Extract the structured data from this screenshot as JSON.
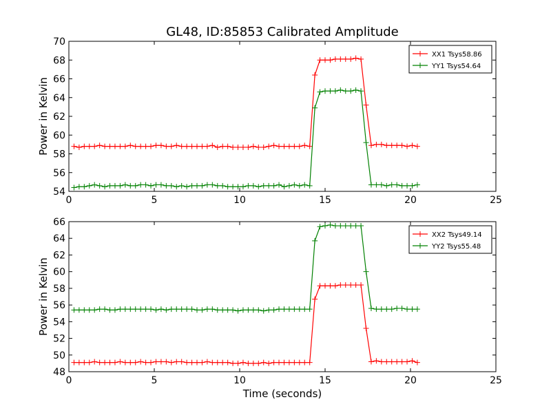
{
  "chart_data": [
    {
      "type": "line",
      "title": "GL48, ID:85853 Calibrated Amplitude",
      "xlabel": "",
      "ylabel": "Power in Kelvin",
      "xlim": [
        0,
        25
      ],
      "ylim": [
        54,
        70
      ],
      "xticks": [
        "0",
        "5",
        "10",
        "15",
        "20",
        "25"
      ],
      "yticks": [
        "54",
        "56",
        "58",
        "60",
        "62",
        "64",
        "66",
        "68",
        "70"
      ],
      "legend_position": "top-right",
      "series": [
        {
          "name": "XX1 Tsys58.86",
          "color": "#ff0000",
          "x": [
            0.3,
            0.6,
            0.9,
            1.2,
            1.5,
            1.8,
            2.1,
            2.4,
            2.7,
            3.0,
            3.3,
            3.6,
            3.9,
            4.2,
            4.5,
            4.8,
            5.1,
            5.4,
            5.7,
            6.0,
            6.3,
            6.6,
            6.9,
            7.2,
            7.5,
            7.8,
            8.1,
            8.4,
            8.7,
            9.0,
            9.3,
            9.6,
            9.9,
            10.2,
            10.5,
            10.8,
            11.1,
            11.4,
            11.7,
            12.0,
            12.3,
            12.6,
            12.9,
            13.2,
            13.5,
            13.8,
            14.1,
            14.4,
            14.7,
            15.0,
            15.3,
            15.6,
            15.9,
            16.2,
            16.5,
            16.8,
            17.1,
            17.4,
            17.7,
            18.0,
            18.3,
            18.6,
            18.9,
            19.2,
            19.5,
            19.8,
            20.1,
            20.4
          ],
          "y": [
            58.8,
            58.7,
            58.8,
            58.8,
            58.8,
            58.9,
            58.8,
            58.8,
            58.8,
            58.8,
            58.8,
            58.9,
            58.8,
            58.8,
            58.8,
            58.8,
            58.9,
            58.9,
            58.8,
            58.8,
            58.9,
            58.8,
            58.8,
            58.8,
            58.8,
            58.8,
            58.8,
            58.9,
            58.7,
            58.8,
            58.8,
            58.7,
            58.7,
            58.7,
            58.7,
            58.8,
            58.7,
            58.7,
            58.8,
            58.9,
            58.8,
            58.8,
            58.8,
            58.8,
            58.8,
            58.9,
            58.8,
            66.4,
            68.0,
            68.0,
            68.0,
            68.1,
            68.1,
            68.1,
            68.1,
            68.2,
            68.1,
            63.2,
            58.9,
            59.0,
            59.0,
            58.9,
            58.9,
            58.9,
            58.9,
            58.8,
            58.9,
            58.8
          ]
        },
        {
          "name": "YY1 Tsys54.64",
          "color": "#008000",
          "x": [
            0.3,
            0.6,
            0.9,
            1.2,
            1.5,
            1.8,
            2.1,
            2.4,
            2.7,
            3.0,
            3.3,
            3.6,
            3.9,
            4.2,
            4.5,
            4.8,
            5.1,
            5.4,
            5.7,
            6.0,
            6.3,
            6.6,
            6.9,
            7.2,
            7.5,
            7.8,
            8.1,
            8.4,
            8.7,
            9.0,
            9.3,
            9.6,
            9.9,
            10.2,
            10.5,
            10.8,
            11.1,
            11.4,
            11.7,
            12.0,
            12.3,
            12.6,
            12.9,
            13.2,
            13.5,
            13.8,
            14.1,
            14.4,
            14.7,
            15.0,
            15.3,
            15.6,
            15.9,
            16.2,
            16.5,
            16.8,
            17.1,
            17.4,
            17.7,
            18.0,
            18.3,
            18.6,
            18.9,
            19.2,
            19.5,
            19.8,
            20.1,
            20.4
          ],
          "y": [
            54.4,
            54.5,
            54.5,
            54.6,
            54.7,
            54.6,
            54.5,
            54.6,
            54.6,
            54.6,
            54.7,
            54.6,
            54.6,
            54.7,
            54.7,
            54.6,
            54.7,
            54.7,
            54.6,
            54.6,
            54.5,
            54.6,
            54.5,
            54.6,
            54.6,
            54.6,
            54.7,
            54.7,
            54.6,
            54.6,
            54.5,
            54.5,
            54.5,
            54.5,
            54.6,
            54.6,
            54.5,
            54.6,
            54.6,
            54.6,
            54.7,
            54.5,
            54.6,
            54.7,
            54.6,
            54.7,
            54.6,
            62.9,
            64.6,
            64.7,
            64.7,
            64.7,
            64.8,
            64.7,
            64.7,
            64.8,
            64.7,
            59.2,
            54.7,
            54.7,
            54.7,
            54.6,
            54.7,
            54.7,
            54.6,
            54.6,
            54.6,
            54.7
          ]
        }
      ]
    },
    {
      "type": "line",
      "title": "",
      "xlabel": "Time (seconds)",
      "ylabel": "Power in Kelvin",
      "xlim": [
        0,
        25
      ],
      "ylim": [
        48,
        66
      ],
      "xticks": [
        "0",
        "5",
        "10",
        "15",
        "20",
        "25"
      ],
      "yticks": [
        "48",
        "50",
        "52",
        "54",
        "56",
        "58",
        "60",
        "62",
        "64",
        "66"
      ],
      "legend_position": "top-right",
      "series": [
        {
          "name": "XX2 Tsys49.14",
          "color": "#ff0000",
          "x": [
            0.3,
            0.6,
            0.9,
            1.2,
            1.5,
            1.8,
            2.1,
            2.4,
            2.7,
            3.0,
            3.3,
            3.6,
            3.9,
            4.2,
            4.5,
            4.8,
            5.1,
            5.4,
            5.7,
            6.0,
            6.3,
            6.6,
            6.9,
            7.2,
            7.5,
            7.8,
            8.1,
            8.4,
            8.7,
            9.0,
            9.3,
            9.6,
            9.9,
            10.2,
            10.5,
            10.8,
            11.1,
            11.4,
            11.7,
            12.0,
            12.3,
            12.6,
            12.9,
            13.2,
            13.5,
            13.8,
            14.1,
            14.4,
            14.7,
            15.0,
            15.3,
            15.6,
            15.9,
            16.2,
            16.5,
            16.8,
            17.1,
            17.4,
            17.7,
            18.0,
            18.3,
            18.6,
            18.9,
            19.2,
            19.5,
            19.8,
            20.1,
            20.4
          ],
          "y": [
            49.1,
            49.1,
            49.1,
            49.1,
            49.2,
            49.1,
            49.1,
            49.1,
            49.1,
            49.2,
            49.1,
            49.1,
            49.1,
            49.2,
            49.1,
            49.1,
            49.2,
            49.2,
            49.2,
            49.1,
            49.2,
            49.2,
            49.1,
            49.1,
            49.1,
            49.1,
            49.2,
            49.1,
            49.1,
            49.1,
            49.1,
            49.0,
            49.0,
            49.1,
            49.0,
            49.0,
            49.0,
            49.1,
            49.0,
            49.1,
            49.1,
            49.1,
            49.1,
            49.1,
            49.1,
            49.1,
            49.1,
            56.7,
            58.3,
            58.3,
            58.3,
            58.3,
            58.4,
            58.4,
            58.4,
            58.4,
            58.4,
            53.2,
            49.2,
            49.3,
            49.2,
            49.2,
            49.2,
            49.2,
            49.2,
            49.2,
            49.3,
            49.1
          ]
        },
        {
          "name": "YY2 Tsys55.48",
          "color": "#008000",
          "x": [
            0.3,
            0.6,
            0.9,
            1.2,
            1.5,
            1.8,
            2.1,
            2.4,
            2.7,
            3.0,
            3.3,
            3.6,
            3.9,
            4.2,
            4.5,
            4.8,
            5.1,
            5.4,
            5.7,
            6.0,
            6.3,
            6.6,
            6.9,
            7.2,
            7.5,
            7.8,
            8.1,
            8.4,
            8.7,
            9.0,
            9.3,
            9.6,
            9.9,
            10.2,
            10.5,
            10.8,
            11.1,
            11.4,
            11.7,
            12.0,
            12.3,
            12.6,
            12.9,
            13.2,
            13.5,
            13.8,
            14.1,
            14.4,
            14.7,
            15.0,
            15.3,
            15.6,
            15.9,
            16.2,
            16.5,
            16.8,
            17.1,
            17.4,
            17.7,
            18.0,
            18.3,
            18.6,
            18.9,
            19.2,
            19.5,
            19.8,
            20.1,
            20.4
          ],
          "y": [
            55.4,
            55.4,
            55.4,
            55.4,
            55.4,
            55.5,
            55.5,
            55.4,
            55.4,
            55.5,
            55.5,
            55.5,
            55.5,
            55.5,
            55.5,
            55.5,
            55.4,
            55.5,
            55.4,
            55.5,
            55.5,
            55.5,
            55.5,
            55.5,
            55.4,
            55.4,
            55.5,
            55.5,
            55.4,
            55.4,
            55.4,
            55.4,
            55.3,
            55.4,
            55.4,
            55.4,
            55.4,
            55.3,
            55.4,
            55.4,
            55.5,
            55.5,
            55.5,
            55.5,
            55.5,
            55.5,
            55.5,
            63.7,
            65.4,
            65.5,
            65.6,
            65.5,
            65.5,
            65.5,
            65.5,
            65.5,
            65.5,
            60.0,
            55.6,
            55.5,
            55.5,
            55.5,
            55.5,
            55.6,
            55.6,
            55.5,
            55.5,
            55.5
          ]
        }
      ]
    }
  ]
}
